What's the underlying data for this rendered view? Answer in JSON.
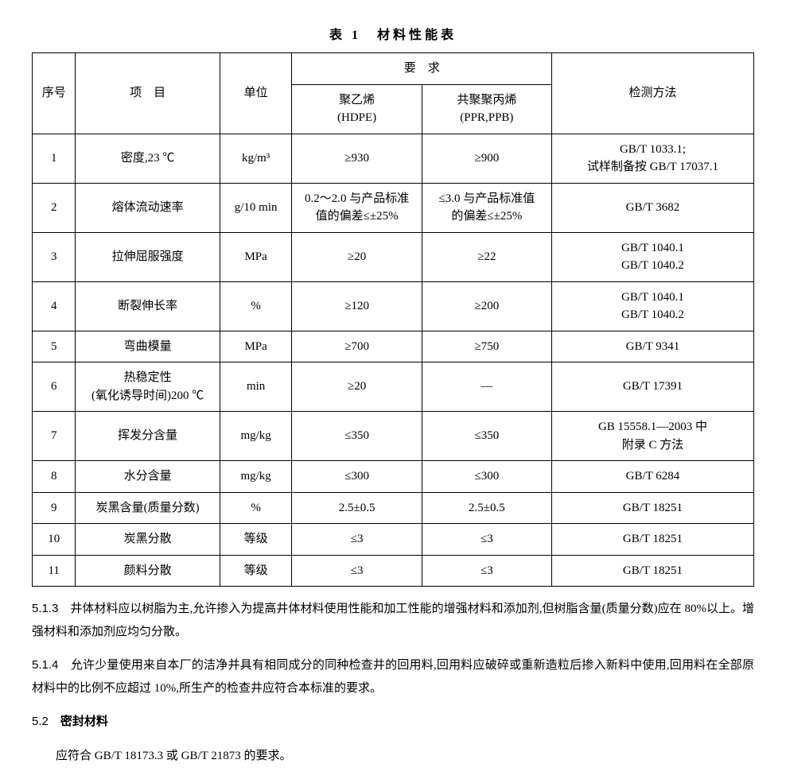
{
  "title": "表 1　材料性能表",
  "header": {
    "seq": "序号",
    "item": "项　目",
    "unit": "单位",
    "req": "要　求",
    "hdpe": "聚乙烯\n(HDPE)",
    "ppr": "共聚聚丙烯\n(PPR,PPB)",
    "method": "检测方法"
  },
  "rows": [
    {
      "seq": "1",
      "item": "密度,23 ℃",
      "unit": "kg/m³",
      "hdpe": "≥930",
      "ppr": "≥900",
      "method": "GB/T 1033.1;\n试样制备按 GB/T 17037.1"
    },
    {
      "seq": "2",
      "item": "熔体流动速率",
      "unit": "g/10 min",
      "hdpe": "0.2～2.0 与产品标准\n值的偏差≤±25%",
      "ppr": "≤3.0 与产品标准值\n的偏差≤±25%",
      "method": "GB/T 3682"
    },
    {
      "seq": "3",
      "item": "拉伸屈服强度",
      "unit": "MPa",
      "hdpe": "≥20",
      "ppr": "≥22",
      "method": "GB/T 1040.1\nGB/T 1040.2"
    },
    {
      "seq": "4",
      "item": "断裂伸长率",
      "unit": "%",
      "hdpe": "≥120",
      "ppr": "≥200",
      "method": "GB/T 1040.1\nGB/T 1040.2"
    },
    {
      "seq": "5",
      "item": "弯曲模量",
      "unit": "MPa",
      "hdpe": "≥700",
      "ppr": "≥750",
      "method": "GB/T 9341"
    },
    {
      "seq": "6",
      "item": "热稳定性\n(氧化诱导时间)200 ℃",
      "unit": "min",
      "hdpe": "≥20",
      "ppr": "—",
      "method": "GB/T 17391"
    },
    {
      "seq": "7",
      "item": "挥发分含量",
      "unit": "mg/kg",
      "hdpe": "≤350",
      "ppr": "≤350",
      "method": "GB 15558.1—2003 中\n附录 C 方法"
    },
    {
      "seq": "8",
      "item": "水分含量",
      "unit": "mg/kg",
      "hdpe": "≤300",
      "ppr": "≤300",
      "method": "GB/T 6284"
    },
    {
      "seq": "9",
      "item": "炭黑含量(质量分数)",
      "unit": "%",
      "hdpe": "2.5±0.5",
      "ppr": "2.5±0.5",
      "method": "GB/T 18251"
    },
    {
      "seq": "10",
      "item": "炭黑分散",
      "unit": "等级",
      "hdpe": "≤3",
      "ppr": "≤3",
      "method": "GB/T 18251"
    },
    {
      "seq": "11",
      "item": "颜料分散",
      "unit": "等级",
      "hdpe": "≤3",
      "ppr": "≤3",
      "method": "GB/T 18251"
    }
  ],
  "para513_num": "5.1.3",
  "para513_text": "　井体材料应以树脂为主,允许掺入为提高井体材料使用性能和加工性能的增强材料和添加剂,但树脂含量(质量分数)应在 80%以上。增强材料和添加剂应均匀分散。",
  "para514_num": "5.1.4",
  "para514_text": "　允许少量使用来自本厂的洁净并具有相同成分的同种检查井的回用料,回用料应破碎或重新造粒后掺入新料中使用,回用料在全部原材料中的比例不应超过 10%,所生产的检查井应符合本标准的要求。",
  "sec52_num": "5.2",
  "sec52_title": "　密封材料",
  "sec52_text": "应符合 GB/T 18173.3 或 GB/T 21873 的要求。"
}
